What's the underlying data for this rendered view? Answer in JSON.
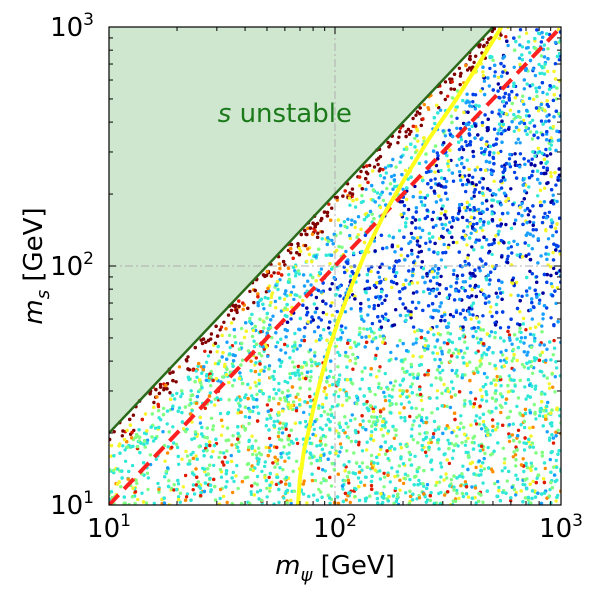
{
  "chart_data": {
    "type": "scatter",
    "title": "",
    "xlabel": "m_ψ [GeV]",
    "ylabel": "m_s [GeV]",
    "xscale": "log",
    "yscale": "log",
    "xlim": [
      10,
      1000
    ],
    "ylim": [
      10,
      1000
    ],
    "grid": "dash-dot lines at x=100 and y=100",
    "x_ticks": [
      {
        "value": 10,
        "base": "10",
        "exp": "1"
      },
      {
        "value": 100,
        "base": "10",
        "exp": "2"
      },
      {
        "value": 1000,
        "base": "10",
        "exp": "3"
      }
    ],
    "y_ticks": [
      {
        "value": 10,
        "base": "10",
        "exp": "1"
      },
      {
        "value": 100,
        "base": "10",
        "exp": "2"
      },
      {
        "value": 1000,
        "base": "10",
        "exp": "3"
      }
    ],
    "regions": [
      {
        "name": "s unstable",
        "label_italic": "s",
        "label_rest": " unstable",
        "boundary": "m_s = 2 m_ψ",
        "fill": "#cfe6cf",
        "edge": "#2a6a1a",
        "label_at": [
          60,
          400
        ]
      }
    ],
    "curves": [
      {
        "name": "dashed boundary",
        "style": "dashed",
        "color": "#ff2020",
        "points": [
          [
            10,
            10
          ],
          [
            1000,
            1000
          ]
        ]
      },
      {
        "name": "yellow contour",
        "style": "solid",
        "color": "#ffff1a",
        "points": [
          [
            68.5,
            10
          ],
          [
            70,
            13
          ],
          [
            73,
            17
          ],
          [
            76,
            20
          ],
          [
            80,
            25
          ],
          [
            86,
            33
          ],
          [
            94,
            45
          ],
          [
            104,
            60
          ],
          [
            118,
            82
          ],
          [
            137,
            115
          ],
          [
            165,
            165
          ],
          [
            205,
            235
          ],
          [
            260,
            340
          ],
          [
            340,
            490
          ],
          [
            440,
            720
          ],
          [
            520,
            930
          ],
          [
            545,
            1000
          ]
        ]
      }
    ],
    "scatter": {
      "description": "dense points colored by a jet colormap: dark red near the m_s = 2 m_ψ edge, blue in the region m_s > ~55 GeV below the boundary, cyan/green with yellow, orange and red speckles for m_s < ~55 GeV",
      "colormap": "jet",
      "colors": {
        "dark_red": "#800000",
        "red": "#e01a00",
        "orange": "#ff8c00",
        "yellow": "#f5f52a",
        "green": "#80ff80",
        "cyan": "#30e8d8",
        "light_blue": "#19a0ff",
        "blue": "#0040e8",
        "dark_blue": "#0000a0"
      }
    }
  }
}
